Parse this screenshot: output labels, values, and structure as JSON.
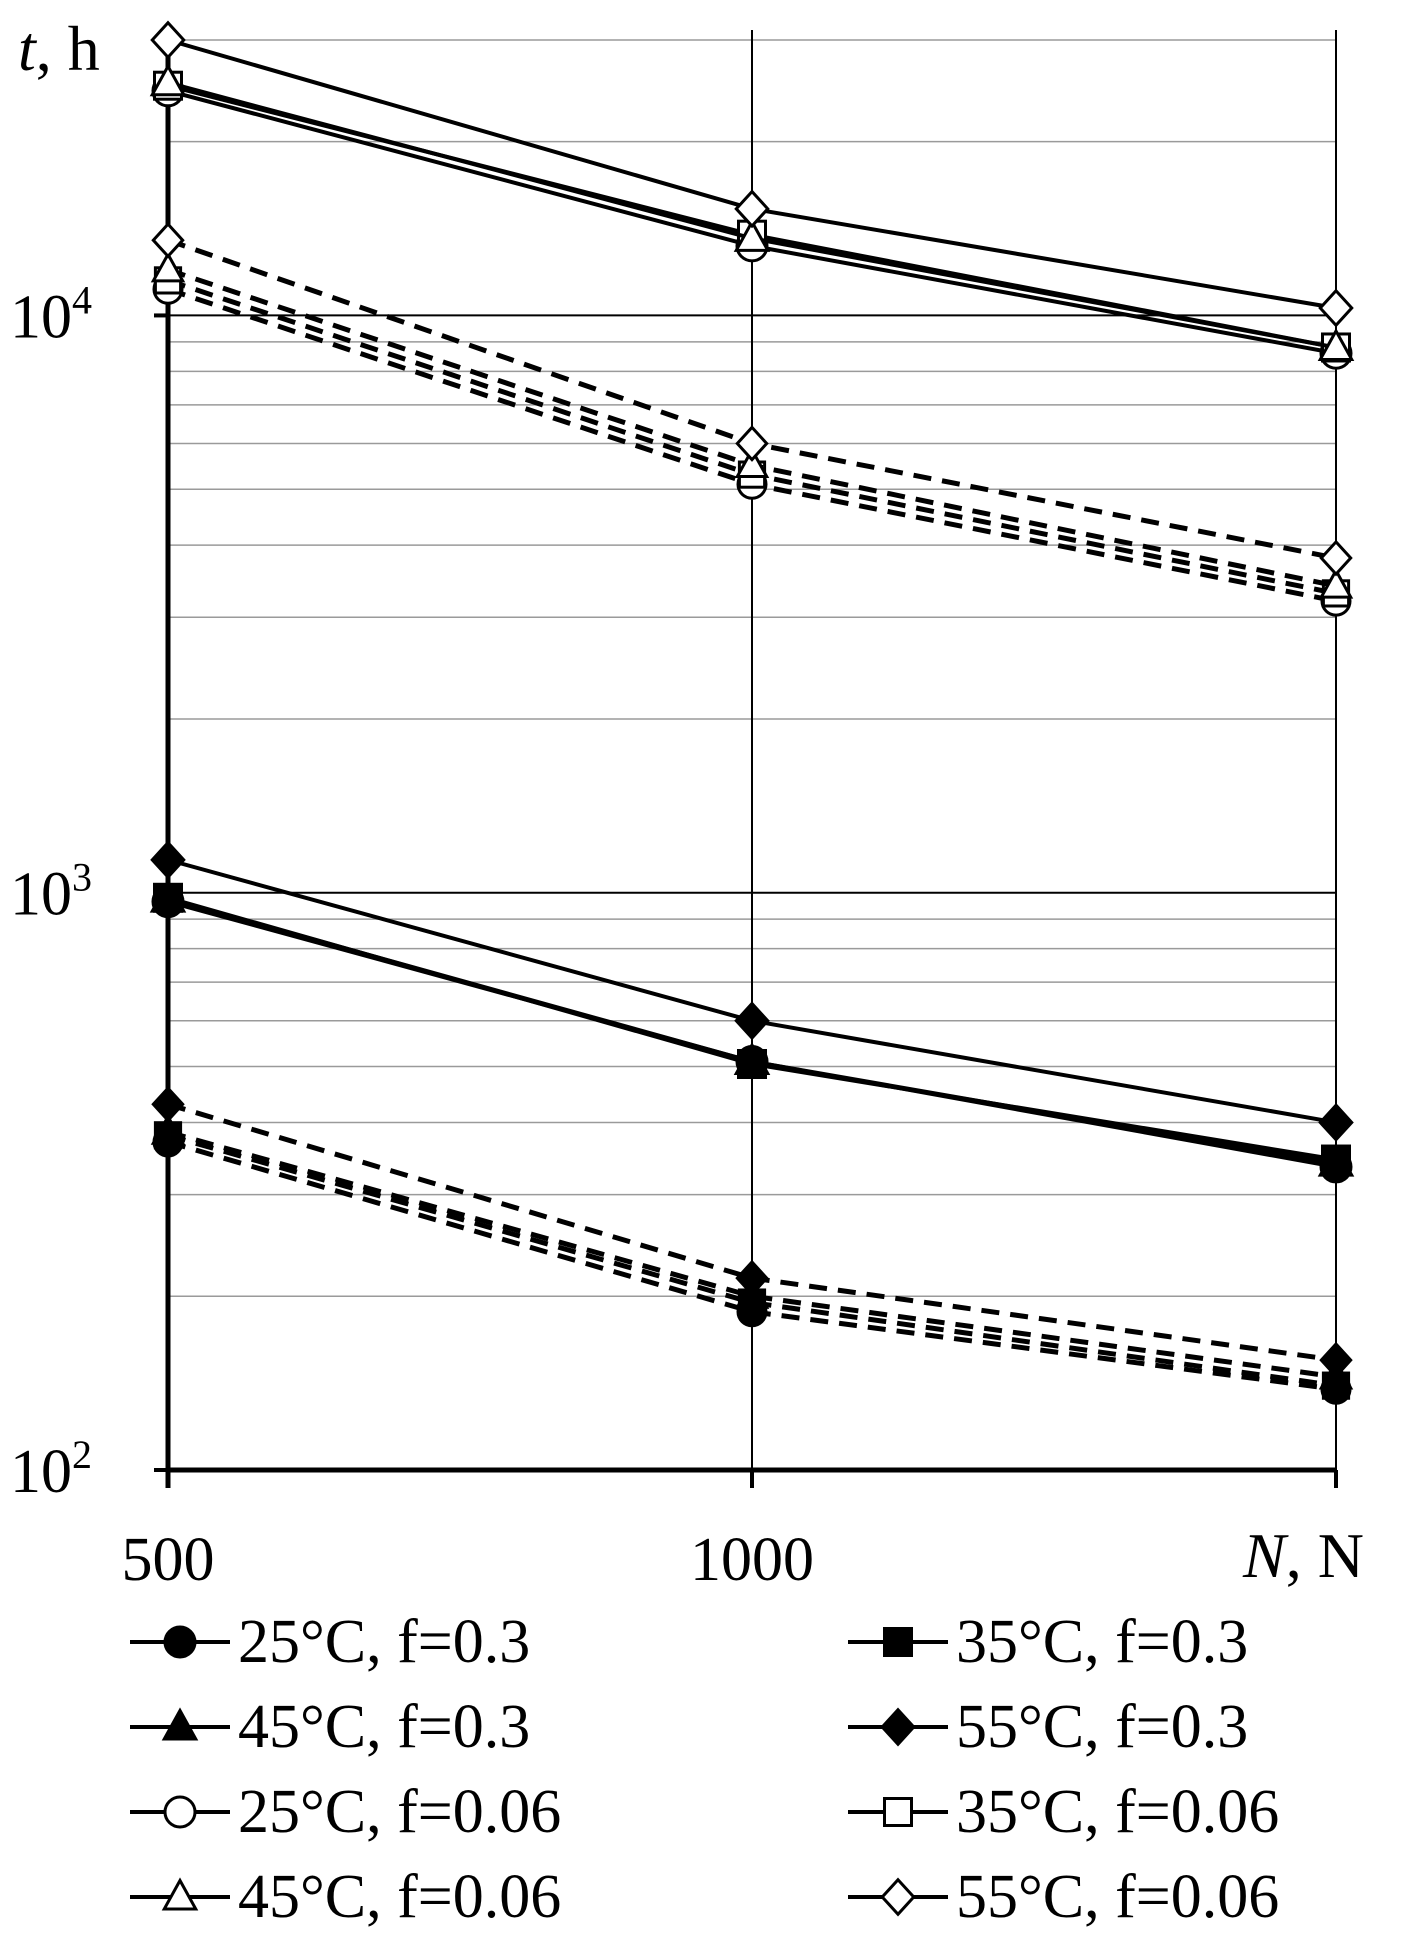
{
  "chart_data": {
    "type": "line",
    "title": "",
    "xlabel": "N",
    "xlabel_unit": ", N",
    "ylabel": "t",
    "ylabel_unit": ", h",
    "y_scale": "log",
    "ylim": [
      100,
      30000
    ],
    "x": [
      500,
      1000,
      1500
    ],
    "x_tick_labels": [
      "500",
      "1000"
    ],
    "y_ticks": [
      {
        "base": "10",
        "exp": "2"
      },
      {
        "base": "10",
        "exp": "3"
      },
      {
        "base": "10",
        "exp": "4"
      }
    ],
    "grid": true,
    "legend": "bottom",
    "series": [
      {
        "name": "25°C, f=0.3",
        "marker": "circle",
        "filled": true,
        "line": "solid",
        "values": [
          965,
          510,
          335
        ]
      },
      {
        "name": "35°C, f=0.3",
        "marker": "square",
        "filled": true,
        "line": "solid",
        "values": [
          980,
          505,
          345
        ]
      },
      {
        "name": "45°C, f=0.3",
        "marker": "triangle",
        "filled": true,
        "line": "solid",
        "values": [
          975,
          510,
          340
        ]
      },
      {
        "name": "55°C, f=0.3",
        "marker": "diamond",
        "filled": true,
        "line": "solid",
        "values": [
          1140,
          600,
          400
        ]
      },
      {
        "name": "25°C, f=0.06",
        "marker": "circle",
        "filled": false,
        "line": "solid",
        "values": [
          24500,
          13200,
          8600
        ]
      },
      {
        "name": "35°C, f=0.06",
        "marker": "square",
        "filled": false,
        "line": "solid",
        "values": [
          25000,
          13800,
          8800
        ]
      },
      {
        "name": "45°C, f=0.06",
        "marker": "triangle",
        "filled": false,
        "line": "solid",
        "values": [
          25300,
          13600,
          8800
        ]
      },
      {
        "name": "55°C, f=0.06",
        "marker": "diamond",
        "filled": false,
        "line": "solid",
        "values": [
          30000,
          15300,
          10300
        ]
      },
      {
        "name": "25°C, f=0.3 (dashed)",
        "marker": "circle",
        "filled": true,
        "line": "dashed",
        "values": [
          370,
          188,
          138
        ]
      },
      {
        "name": "35°C, f=0.3 (dashed)",
        "marker": "square",
        "filled": true,
        "line": "dashed",
        "values": [
          380,
          195,
          140
        ]
      },
      {
        "name": "45°C, f=0.3 (dashed)",
        "marker": "triangle",
        "filled": true,
        "line": "dashed",
        "values": [
          385,
          200,
          145
        ]
      },
      {
        "name": "55°C, f=0.3 (dashed)",
        "marker": "diamond",
        "filled": true,
        "line": "dashed",
        "values": [
          430,
          215,
          155
        ]
      },
      {
        "name": "25°C, f=0.06 (dashed)",
        "marker": "circle",
        "filled": false,
        "line": "dashed",
        "values": [
          11100,
          5100,
          3200
        ]
      },
      {
        "name": "35°C, f=0.06 (dashed)",
        "marker": "square",
        "filled": false,
        "line": "dashed",
        "values": [
          11500,
          5300,
          3300
        ]
      },
      {
        "name": "45°C, f=0.06 (dashed)",
        "marker": "triangle",
        "filled": false,
        "line": "dashed",
        "values": [
          12000,
          5500,
          3400
        ]
      },
      {
        "name": "55°C, f=0.06 (dashed)",
        "marker": "diamond",
        "filled": false,
        "line": "dashed",
        "values": [
          13500,
          6000,
          3800
        ]
      }
    ],
    "legend_entries": [
      {
        "label": "25°C, f=0.3",
        "marker": "circle",
        "filled": true
      },
      {
        "label": "35°C, f=0.3",
        "marker": "square",
        "filled": true
      },
      {
        "label": "45°C, f=0.3",
        "marker": "triangle",
        "filled": true
      },
      {
        "label": "55°C, f=0.3",
        "marker": "diamond",
        "filled": true
      },
      {
        "label": "25°C, f=0.06",
        "marker": "circle",
        "filled": false
      },
      {
        "label": "35°C, f=0.06",
        "marker": "square",
        "filled": false
      },
      {
        "label": "45°C, f=0.06",
        "marker": "triangle",
        "filled": false
      },
      {
        "label": "55°C, f=0.06",
        "marker": "diamond",
        "filled": false
      }
    ]
  }
}
